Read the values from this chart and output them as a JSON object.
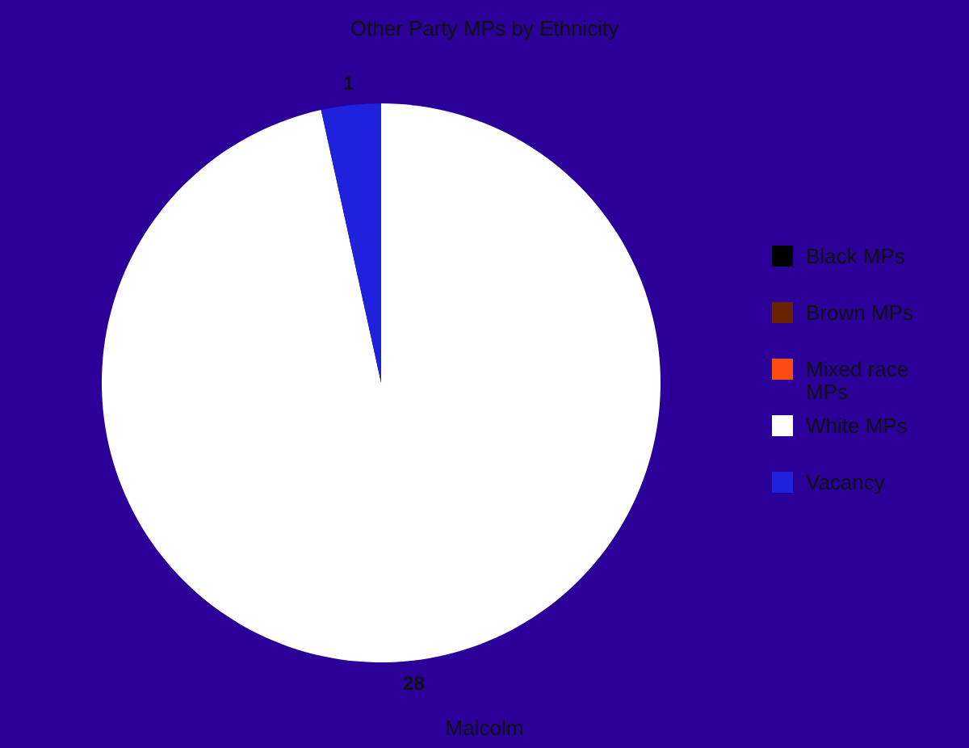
{
  "chart_data": {
    "type": "pie",
    "title": "Other Party MPs by Ethnicity",
    "categories": [
      "Black MPs",
      "Brown MPs",
      "Mixed race MPs",
      "White MPs",
      "Vacancy"
    ],
    "values": [
      0,
      0,
      0,
      28,
      1
    ],
    "colors": [
      "#000000",
      "#6b2200",
      "#ff4a12",
      "#ffffff",
      "#1e22dd"
    ],
    "value_labels": [
      null,
      null,
      null,
      "28",
      "1"
    ],
    "legend": "right",
    "annotations": [
      "Malcolm"
    ]
  }
}
